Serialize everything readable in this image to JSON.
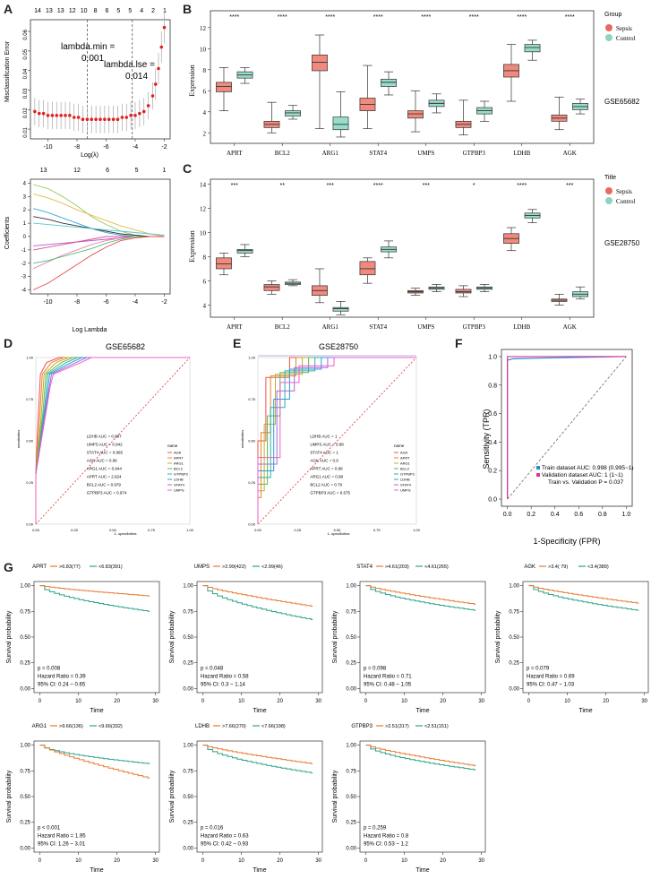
{
  "panel_labels": [
    "A",
    "B",
    "C",
    "D",
    "E",
    "F",
    "G"
  ],
  "top_axis": {
    "labels": [
      "14",
      "13",
      "13",
      "12",
      "10",
      "8",
      "6",
      "5",
      "5",
      "4",
      "2",
      "1"
    ]
  },
  "lambda_min": {
    "line1": "lambda.min =",
    "line2": "0.001"
  },
  "lambda_1se": {
    "line1": "lambda.lse =",
    "line2": "0.014"
  },
  "coef_top_axis": {
    "labels": [
      "13",
      "12",
      "6",
      "5",
      "1"
    ]
  },
  "genes": [
    "APRT",
    "BCL2",
    "ARG1",
    "STAT4",
    "UMPS",
    "GTPBP3",
    "LDHB",
    "AGK"
  ],
  "colors": {
    "sepsis": "#e8857a",
    "control": "#8fd4c3",
    "orange": "#e8792d",
    "teal": "#2aa38a",
    "red": "#d0342c",
    "blue": "#1f90d6",
    "pink": "#e0349b"
  },
  "roc_legend": {
    "title": "name",
    "items": [
      "AGK",
      "APRT",
      "ARG1",
      "BCL2",
      "GTPBP3",
      "LDHB",
      "STAT4",
      "UMPS"
    ],
    "colors": [
      "#f0504a",
      "#e8822f",
      "#bcae2e",
      "#5fb94b",
      "#2ab2a6",
      "#2b9bd8",
      "#a06ae0",
      "#ec5fc6"
    ]
  },
  "survival_legend_title": "",
  "chart_data": [
    {
      "panel": "A-top",
      "type": "scatter",
      "xlabel": "Log(λ)",
      "ylabel": "Misclassification Error",
      "xticks": [
        "-10",
        "-8",
        "-6",
        "-4",
        "-2"
      ],
      "yticks": [
        "0.01",
        "0.02",
        "0.03",
        "0.04",
        "0.05",
        "0.06"
      ],
      "xlim": [
        -11.2,
        -1.6
      ],
      "ylim": [
        0.005,
        0.066
      ],
      "x": [
        -10.9,
        -10.6,
        -10.3,
        -10.0,
        -9.7,
        -9.4,
        -9.1,
        -8.8,
        -8.5,
        -8.2,
        -7.9,
        -7.6,
        -7.3,
        -7.0,
        -6.7,
        -6.4,
        -6.1,
        -5.8,
        -5.5,
        -5.2,
        -4.9,
        -4.6,
        -4.3,
        -4.0,
        -3.7,
        -3.4,
        -3.1,
        -2.8,
        -2.6,
        -2.4,
        -2.2,
        -2.0
      ],
      "y": [
        0.019,
        0.018,
        0.018,
        0.017,
        0.017,
        0.017,
        0.017,
        0.017,
        0.017,
        0.016,
        0.016,
        0.015,
        0.015,
        0.015,
        0.015,
        0.015,
        0.015,
        0.015,
        0.015,
        0.015,
        0.016,
        0.016,
        0.017,
        0.017,
        0.018,
        0.019,
        0.022,
        0.027,
        0.033,
        0.041,
        0.052,
        0.062
      ],
      "vlines": [
        -7.3,
        -4.2
      ]
    },
    {
      "panel": "A-bottom",
      "type": "line",
      "xlabel": "Log Lambda",
      "ylabel": "Coefficients",
      "xticks": [
        "-10",
        "-8",
        "-6",
        "-4",
        "-2"
      ],
      "yticks": [
        "-4",
        "-3",
        "-2",
        "-1",
        "0",
        "1",
        "2",
        "3",
        "4"
      ],
      "xlim": [
        -11.2,
        -1.6
      ],
      "ylim": [
        -4.3,
        4.3
      ],
      "x": [
        -11,
        -10,
        -9,
        -8,
        -7,
        -6,
        -5,
        -4,
        -3,
        -2
      ],
      "series": [
        {
          "values": [
            3.9,
            3.6,
            3.0,
            2.3,
            1.5,
            0.9,
            0.4,
            0.1,
            0,
            0
          ],
          "color": "#8fcf5a"
        },
        {
          "values": [
            3.2,
            2.9,
            2.5,
            2.0,
            1.6,
            1.2,
            0.8,
            0.5,
            0.2,
            0
          ],
          "color": "#e9b84a"
        },
        {
          "values": [
            2.1,
            1.8,
            1.4,
            1.0,
            0.6,
            0.3,
            0.1,
            0,
            0,
            0
          ],
          "color": "#3aa6d8"
        },
        {
          "values": [
            1.5,
            1.3,
            1.0,
            0.8,
            0.6,
            0.4,
            0.2,
            0.1,
            0,
            0
          ],
          "color": "#333333"
        },
        {
          "values": [
            1.0,
            0.9,
            0.8,
            0.7,
            0.6,
            0.5,
            0.4,
            0.3,
            0.2,
            0.1
          ],
          "color": "#55c6d5"
        },
        {
          "values": [
            -0.7,
            -0.6,
            -0.5,
            -0.4,
            -0.3,
            -0.2,
            -0.1,
            0,
            0,
            0
          ],
          "color": "#b05ad6"
        },
        {
          "values": [
            -1.0,
            -0.8,
            -0.6,
            -0.4,
            -0.2,
            0,
            0,
            0,
            0,
            0
          ],
          "color": "#e64b8c"
        },
        {
          "values": [
            -2.4,
            -1.9,
            -1.4,
            -1.0,
            -0.6,
            -0.3,
            -0.1,
            0,
            0,
            0
          ],
          "color": "#f07fb0"
        },
        {
          "values": [
            -2.0,
            -1.8,
            -1.5,
            -1.2,
            -0.9,
            -0.5,
            -0.2,
            0,
            0,
            0
          ],
          "color": "#44c27a"
        },
        {
          "values": [
            -4.0,
            -3.5,
            -2.8,
            -2.1,
            -1.4,
            -0.8,
            -0.3,
            -0.1,
            0,
            0
          ],
          "color": "#e84a4a"
        }
      ]
    },
    {
      "panel": "B",
      "type": "box",
      "dataset": "GSE65682",
      "ylabel": "Expression",
      "legend": {
        "title": "Group",
        "items": [
          "Sepsis",
          "Control"
        ]
      },
      "yticks": [
        "2",
        "4",
        "6",
        "8",
        "10",
        "12"
      ],
      "ylim": [
        1,
        13.6
      ],
      "categories": [
        "APRT",
        "BCL2",
        "ARG1",
        "STAT4",
        "UMPS",
        "GTPBP3",
        "LDHB",
        "AGK"
      ],
      "significance": [
        "****",
        "****",
        "****",
        "****",
        "****",
        "****",
        "****",
        "****"
      ],
      "series": [
        {
          "name": "Sepsis",
          "boxes": [
            [
              4.1,
              5.9,
              6.4,
              6.8,
              8.2
            ],
            [
              2.0,
              2.5,
              2.8,
              3.1,
              4.9
            ],
            [
              2.4,
              7.9,
              8.7,
              9.4,
              11.3
            ],
            [
              2.4,
              4.1,
              4.7,
              5.3,
              8.4
            ],
            [
              2.1,
              3.4,
              3.8,
              4.1,
              6.0
            ],
            [
              1.8,
              2.5,
              2.8,
              3.1,
              5.1
            ],
            [
              5.0,
              7.3,
              7.9,
              8.5,
              10.4
            ],
            [
              2.3,
              3.1,
              3.4,
              3.7,
              5.4
            ]
          ]
        },
        {
          "name": "Control",
          "boxes": [
            [
              6.7,
              7.2,
              7.5,
              7.8,
              8.2
            ],
            [
              3.3,
              3.6,
              3.9,
              4.1,
              4.6
            ],
            [
              1.6,
              2.3,
              2.8,
              3.5,
              5.9
            ],
            [
              5.6,
              6.4,
              6.8,
              7.1,
              7.8
            ],
            [
              3.9,
              4.5,
              4.8,
              5.1,
              5.7
            ],
            [
              3.1,
              3.8,
              4.1,
              4.4,
              5.0
            ],
            [
              8.9,
              9.7,
              10.1,
              10.4,
              10.8
            ],
            [
              3.8,
              4.2,
              4.5,
              4.8,
              5.2
            ]
          ]
        }
      ]
    },
    {
      "panel": "C",
      "type": "box",
      "dataset": "GSE28750",
      "ylabel": "Expression",
      "legend": {
        "title": "Title",
        "items": [
          "Sepsis",
          "Control"
        ]
      },
      "yticks": [
        "4",
        "6",
        "8",
        "10",
        "12",
        "14"
      ],
      "ylim": [
        3,
        14.4
      ],
      "categories": [
        "APRT",
        "BCL2",
        "ARG1",
        "STAT4",
        "UMPS",
        "GTPBP3",
        "LDHB",
        "AGK"
      ],
      "significance": [
        "***",
        "**",
        "***",
        "****",
        "***",
        "*",
        "****",
        "***"
      ],
      "series": [
        {
          "name": "Sepsis",
          "boxes": [
            [
              6.5,
              7.0,
              7.4,
              7.9,
              8.3
            ],
            [
              4.9,
              5.2,
              5.5,
              5.7,
              6.0
            ],
            [
              4.2,
              4.8,
              5.2,
              5.6,
              7.0
            ],
            [
              5.8,
              6.5,
              7.0,
              7.6,
              7.9
            ],
            [
              4.8,
              5.0,
              5.1,
              5.2,
              5.4
            ],
            [
              4.7,
              5.0,
              5.1,
              5.3,
              5.6
            ],
            [
              8.5,
              9.1,
              9.5,
              9.9,
              10.4
            ],
            [
              4.0,
              4.3,
              4.4,
              4.5,
              4.9
            ]
          ]
        },
        {
          "name": "Control",
          "boxes": [
            [
              8.0,
              8.3,
              8.5,
              8.6,
              9.0
            ],
            [
              5.6,
              5.7,
              5.8,
              5.9,
              6.1
            ],
            [
              3.2,
              3.5,
              3.7,
              3.8,
              4.3
            ],
            [
              7.9,
              8.4,
              8.6,
              8.8,
              9.3
            ],
            [
              5.1,
              5.3,
              5.4,
              5.5,
              5.7
            ],
            [
              5.1,
              5.3,
              5.4,
              5.5,
              5.7
            ],
            [
              10.8,
              11.2,
              11.4,
              11.6,
              11.9
            ],
            [
              4.5,
              4.7,
              4.9,
              5.1,
              5.5
            ]
          ]
        }
      ]
    },
    {
      "panel": "D",
      "type": "line",
      "title": "GSE65682",
      "xlabel": "1- specificities",
      "ylabel": "sensitivities",
      "xticks": [
        "0.00",
        "0.25",
        "0.50",
        "0.75",
        "1.00"
      ],
      "yticks": [
        "0.00",
        "0.25",
        "0.50",
        "0.75",
        "1.00"
      ],
      "auc_labels": [
        "LDHB  AUC = 0.987",
        "UMPS  AUC = 0.942",
        "STAT4  AUC = 0.965",
        "AGK  AUC = 0.96",
        "ARG1  AUC = 0.944",
        "APRT  AUC = 2.924",
        "BCL2  AUC = 0.979",
        "GTPBP3  AUC = 0.974"
      ]
    },
    {
      "panel": "E",
      "type": "line",
      "title": "GSE28750",
      "xlabel": "1- specificities",
      "ylabel": "sensitivities",
      "xticks": [
        "0.00",
        "0.25",
        "0.50",
        "0.75",
        "1.00"
      ],
      "yticks": [
        "0.00",
        "0.25",
        "0.50",
        "0.75",
        "1.00"
      ],
      "auc_labels": [
        "LDHB  AUC = 1",
        "UMPS  AUC = 0.98",
        "STAT4  AUC = 1",
        "AGK  AUC = 0.9",
        "APRT  AUC = 0.98",
        "ARG1  AUC = 0.98",
        "BCL2  AUC = 0.79",
        "GTPBP3  AUC = 0.675"
      ]
    },
    {
      "panel": "F",
      "type": "line",
      "xlabel": "1-Specificity (FPR)",
      "ylabel": "Sensitivity (TPR)",
      "xticks": [
        "0.0",
        "0.2",
        "0.4",
        "0.6",
        "0.8",
        "1.0"
      ],
      "yticks": [
        "0.0",
        "0.2",
        "0.4",
        "0.6",
        "0.8",
        "1.0"
      ],
      "series": [
        {
          "name": "Train dataset AUC: 0.998 (0.995~1)",
          "color": "#1f90d6"
        },
        {
          "name": "Validation dataset AUC: 1 (1~1)",
          "color": "#e0349b"
        }
      ],
      "note": "Train vs. Validation P = 0.037"
    },
    {
      "panel": "G",
      "type": "line",
      "xlabel": "Time",
      "ylabel": "Survival probability",
      "xticks": [
        "0",
        "10",
        "20",
        "30"
      ],
      "yticks": [
        "0.00",
        "0.25",
        "0.50",
        "0.75",
        "1.00"
      ],
      "plots": [
        {
          "gene": "APRT",
          "high": ">6.83(77)",
          "low": "<6.83(391)",
          "p": "p = 0.008",
          "hr": "Hazard Ratio = 0.39",
          "ci": "95% CI: 0.24 ~ 0.65",
          "orange_end": 0.9,
          "teal_end": 0.75
        },
        {
          "gene": "UMPS",
          "high": ">2.99(422)",
          "low": "<2.99(46)",
          "p": "p = 0.048",
          "hr": "Hazard Ratio = 0.58",
          "ci": "95% CI: 0.3 ~ 1.14",
          "orange_end": 0.8,
          "teal_end": 0.67
        },
        {
          "gene": "STAT4",
          "high": ">4.61(203)",
          "low": "<4.61(265)",
          "p": "p = 0.098",
          "hr": "Hazard Ratio = 0.71",
          "ci": "95% CI: 0.48 ~ 1.05",
          "orange_end": 0.82,
          "teal_end": 0.76
        },
        {
          "gene": "AGK",
          "high": ">3.4( 79)",
          "low": "<3.4(389)",
          "p": "p = 0.079",
          "hr": "Hazard Ratio = 0.69",
          "ci": "95% CI: 0.47 ~ 1.03",
          "orange_end": 0.83,
          "teal_end": 0.76
        },
        {
          "gene": "ARG1",
          "high": ">9.66(136)",
          "low": "<9.66(332)",
          "p": "p < 0.001",
          "hr": "Hazard Ratio = 1.95",
          "ci": "95% CI: 1.26 ~ 3.01",
          "orange_end": 0.68,
          "teal_end": 0.82
        },
        {
          "gene": "LDHB",
          "high": ">7.66(270)",
          "low": "<7.66(198)",
          "p": "p = 0.016",
          "hr": "Hazard Ratio = 0.63",
          "ci": "95% CI: 0.42 ~ 0.93",
          "orange_end": 0.82,
          "teal_end": 0.73
        },
        {
          "gene": "GTPBP3",
          "high": ">2.51(317)",
          "low": "<2.51(151)",
          "p": "p = 0.259",
          "hr": "Hazard Ratio = 0.8",
          "ci": "95% CI: 0.53 ~ 1.2",
          "orange_end": 0.8,
          "teal_end": 0.76
        }
      ]
    }
  ]
}
